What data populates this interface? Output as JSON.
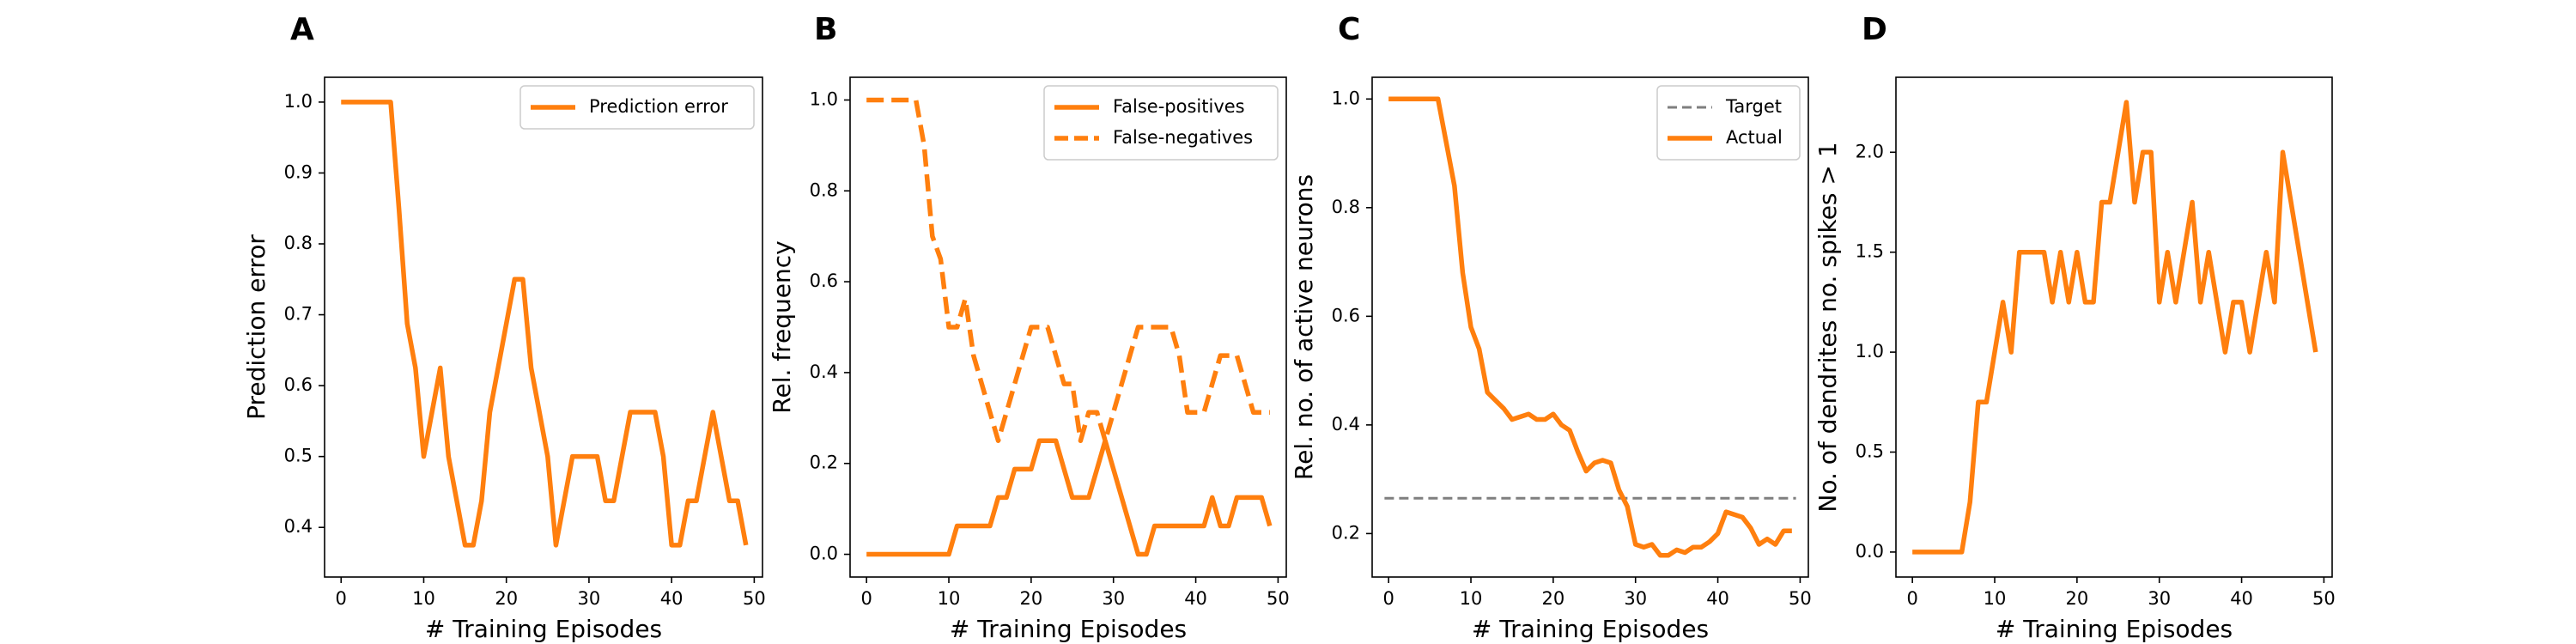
{
  "figure": {
    "line_color": "#ff7f0e",
    "target_color": "#7f7f7f"
  },
  "chart_data": [
    {
      "panel": "A",
      "type": "line",
      "xlabel": "# Training Episodes",
      "ylabel": "Prediction error",
      "xlim": [
        -2,
        51
      ],
      "ylim": [
        0.33,
        1.035
      ],
      "xticks": [
        0,
        10,
        20,
        30,
        40,
        50
      ],
      "yticks": [
        0.4,
        0.5,
        0.6,
        0.7,
        0.8,
        0.9,
        1.0
      ],
      "ytick_decimals": 1,
      "legend": "top-right",
      "grid": false,
      "series": [
        {
          "name": "Prediction error",
          "style": "solid",
          "color": "#ff7f0e",
          "x": [
            0,
            1,
            2,
            3,
            4,
            5,
            6,
            7,
            8,
            9,
            10,
            11,
            12,
            13,
            14,
            15,
            16,
            17,
            18,
            19,
            20,
            21,
            22,
            23,
            24,
            25,
            26,
            27,
            28,
            29,
            30,
            31,
            32,
            33,
            34,
            35,
            36,
            37,
            38,
            39,
            40,
            41,
            42,
            43,
            44,
            45,
            46,
            47,
            48,
            49
          ],
          "values": [
            1.0,
            1.0,
            1.0,
            1.0,
            1.0,
            1.0,
            1.0,
            0.85,
            0.6875,
            0.625,
            0.5,
            0.5625,
            0.625,
            0.5,
            0.4375,
            0.375,
            0.375,
            0.4375,
            0.5625,
            0.625,
            0.6875,
            0.75,
            0.75,
            0.625,
            0.5625,
            0.5,
            0.375,
            0.4375,
            0.5,
            0.5,
            0.5,
            0.5,
            0.4375,
            0.4375,
            0.5,
            0.5625,
            0.5625,
            0.5625,
            0.5625,
            0.5,
            0.375,
            0.375,
            0.4375,
            0.4375,
            0.5,
            0.5625,
            0.5,
            0.4375,
            0.4375,
            0.375
          ]
        }
      ]
    },
    {
      "panel": "B",
      "type": "line",
      "xlabel": "# Training Episodes",
      "ylabel": "Rel. frequency",
      "xlim": [
        -2,
        51
      ],
      "ylim": [
        -0.05,
        1.05
      ],
      "xticks": [
        0,
        10,
        20,
        30,
        40,
        50
      ],
      "yticks": [
        0.0,
        0.2,
        0.4,
        0.6,
        0.8,
        1.0
      ],
      "ytick_decimals": 1,
      "legend": "top-right",
      "grid": false,
      "series": [
        {
          "name": "False-positives",
          "style": "solid",
          "color": "#ff7f0e",
          "x": [
            0,
            1,
            2,
            3,
            4,
            5,
            6,
            7,
            8,
            9,
            10,
            11,
            12,
            13,
            14,
            15,
            16,
            17,
            18,
            19,
            20,
            21,
            22,
            23,
            24,
            25,
            26,
            27,
            28,
            29,
            30,
            31,
            32,
            33,
            34,
            35,
            36,
            37,
            38,
            39,
            40,
            41,
            42,
            43,
            44,
            45,
            46,
            47,
            48,
            49
          ],
          "values": [
            0,
            0,
            0,
            0,
            0,
            0,
            0,
            0,
            0,
            0,
            0,
            0.0625,
            0.0625,
            0.0625,
            0.0625,
            0.0625,
            0.125,
            0.125,
            0.1875,
            0.1875,
            0.1875,
            0.25,
            0.25,
            0.25,
            0.1875,
            0.125,
            0.125,
            0.125,
            0.1875,
            0.25,
            0.1875,
            0.125,
            0.0625,
            0,
            0,
            0.0625,
            0.0625,
            0.0625,
            0.0625,
            0.0625,
            0.0625,
            0.0625,
            0.125,
            0.0625,
            0.0625,
            0.125,
            0.125,
            0.125,
            0.125,
            0.0625
          ]
        },
        {
          "name": "False-negatives",
          "style": "dashed",
          "color": "#ff7f0e",
          "x": [
            0,
            1,
            2,
            3,
            4,
            5,
            6,
            7,
            8,
            9,
            10,
            11,
            12,
            13,
            14,
            15,
            16,
            17,
            18,
            19,
            20,
            21,
            22,
            23,
            24,
            25,
            26,
            27,
            28,
            29,
            30,
            31,
            32,
            33,
            34,
            35,
            36,
            37,
            38,
            39,
            40,
            41,
            42,
            43,
            44,
            45,
            46,
            47,
            48,
            49
          ],
          "values": [
            1,
            1,
            1,
            1,
            1,
            1,
            1,
            0.9,
            0.7,
            0.65,
            0.5,
            0.5,
            0.5625,
            0.4375,
            0.375,
            0.3125,
            0.25,
            0.3125,
            0.375,
            0.4375,
            0.5,
            0.5,
            0.5,
            0.4375,
            0.375,
            0.375,
            0.25,
            0.3125,
            0.3125,
            0.25,
            0.3125,
            0.375,
            0.4375,
            0.5,
            0.5,
            0.5,
            0.5,
            0.5,
            0.4375,
            0.3125,
            0.3125,
            0.3125,
            0.375,
            0.4375,
            0.4375,
            0.4375,
            0.375,
            0.3125,
            0.3125,
            0.3125
          ]
        }
      ]
    },
    {
      "panel": "C",
      "type": "line",
      "xlabel": "# Training Episodes",
      "ylabel": "Rel. no. of active neurons",
      "xlim": [
        -2,
        51
      ],
      "ylim": [
        0.12,
        1.04
      ],
      "xticks": [
        0,
        10,
        20,
        30,
        40,
        50
      ],
      "yticks": [
        0.2,
        0.4,
        0.6,
        0.8,
        1.0
      ],
      "ytick_decimals": 1,
      "legend": "top-right",
      "grid": false,
      "series": [
        {
          "name": "Target",
          "style": "dashed-thin",
          "color": "#7f7f7f",
          "x": [
            -0.5,
            49.5
          ],
          "values": [
            0.265,
            0.265
          ]
        },
        {
          "name": "Actual",
          "style": "solid",
          "color": "#ff7f0e",
          "x": [
            0,
            1,
            2,
            3,
            4,
            5,
            6,
            7,
            8,
            9,
            10,
            11,
            12,
            13,
            14,
            15,
            16,
            17,
            18,
            19,
            20,
            21,
            22,
            23,
            24,
            25,
            26,
            27,
            28,
            29,
            30,
            31,
            32,
            33,
            34,
            35,
            36,
            37,
            38,
            39,
            40,
            41,
            42,
            43,
            44,
            45,
            46,
            47,
            48,
            49
          ],
          "values": [
            1.0,
            1.0,
            1.0,
            1.0,
            1.0,
            1.0,
            1.0,
            0.92,
            0.84,
            0.68,
            0.58,
            0.54,
            0.46,
            0.445,
            0.43,
            0.41,
            0.415,
            0.42,
            0.41,
            0.41,
            0.42,
            0.4,
            0.39,
            0.35,
            0.315,
            0.33,
            0.335,
            0.33,
            0.28,
            0.25,
            0.18,
            0.175,
            0.18,
            0.16,
            0.16,
            0.17,
            0.165,
            0.175,
            0.175,
            0.185,
            0.2,
            0.24,
            0.235,
            0.23,
            0.21,
            0.18,
            0.19,
            0.18,
            0.205,
            0.205
          ]
        }
      ]
    },
    {
      "panel": "D",
      "type": "line",
      "xlabel": "# Training Episodes",
      "ylabel": "No. of dendrites no. spikes > 1",
      "xlim": [
        -2,
        51
      ],
      "ylim": [
        -0.125,
        2.375
      ],
      "xticks": [
        0,
        10,
        20,
        30,
        40,
        50
      ],
      "yticks": [
        0.0,
        0.5,
        1.0,
        1.5,
        2.0
      ],
      "ytick_decimals": 1,
      "legend": "none",
      "grid": false,
      "series": [
        {
          "style": "solid",
          "color": "#ff7f0e",
          "x": [
            0,
            1,
            2,
            3,
            4,
            5,
            6,
            7,
            8,
            9,
            10,
            11,
            12,
            13,
            14,
            15,
            16,
            17,
            18,
            19,
            20,
            21,
            22,
            23,
            24,
            25,
            26,
            27,
            28,
            29,
            30,
            31,
            32,
            33,
            34,
            35,
            36,
            37,
            38,
            39,
            40,
            41,
            42,
            43,
            44,
            45,
            46,
            47,
            48,
            49
          ],
          "values": [
            0,
            0,
            0,
            0,
            0,
            0,
            0,
            0.25,
            0.75,
            0.75,
            1.0,
            1.25,
            1.0,
            1.5,
            1.5,
            1.5,
            1.5,
            1.25,
            1.5,
            1.25,
            1.5,
            1.25,
            1.25,
            1.75,
            1.75,
            2.0,
            2.25,
            1.75,
            2.0,
            2.0,
            1.25,
            1.5,
            1.25,
            1.5,
            1.75,
            1.25,
            1.5,
            1.25,
            1.0,
            1.25,
            1.25,
            1.0,
            1.25,
            1.5,
            1.25,
            2.0,
            1.75,
            1.5,
            1.25,
            1.0
          ]
        }
      ]
    }
  ]
}
